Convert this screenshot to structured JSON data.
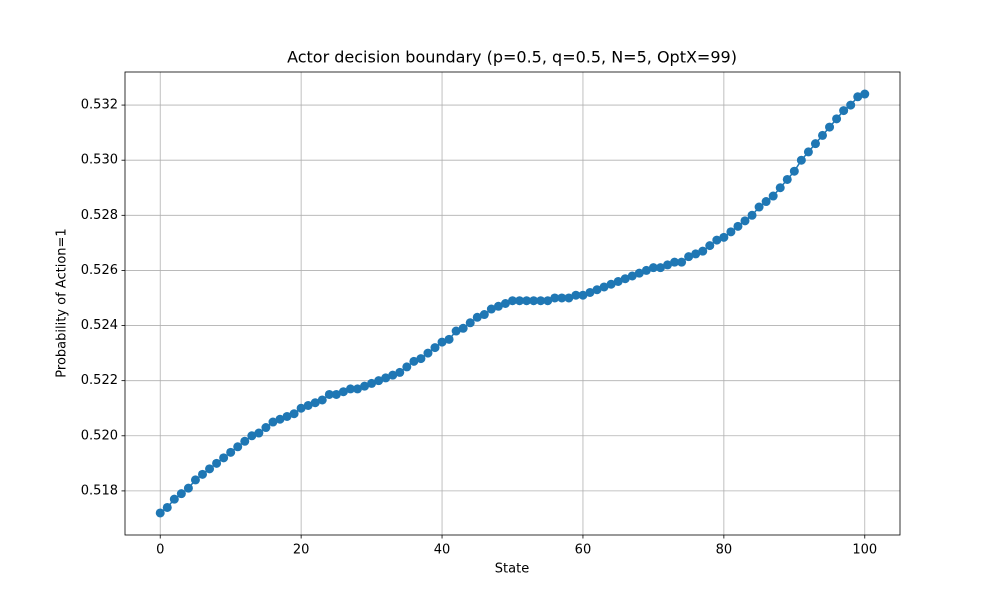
{
  "chart_data": {
    "type": "line",
    "title": "Actor decision boundary (p=0.5, q=0.5, N=5, OptX=99)",
    "x_label": "State",
    "y_label": "Probability of Action=1",
    "x": [
      0,
      1,
      2,
      3,
      4,
      5,
      6,
      7,
      8,
      9,
      10,
      11,
      12,
      13,
      14,
      15,
      16,
      17,
      18,
      19,
      20,
      21,
      22,
      23,
      24,
      25,
      26,
      27,
      28,
      29,
      30,
      31,
      32,
      33,
      34,
      35,
      36,
      37,
      38,
      39,
      40,
      41,
      42,
      43,
      44,
      45,
      46,
      47,
      48,
      49,
      50,
      51,
      52,
      53,
      54,
      55,
      56,
      57,
      58,
      59,
      60,
      61,
      62,
      63,
      64,
      65,
      66,
      67,
      68,
      69,
      70,
      71,
      72,
      73,
      74,
      75,
      76,
      77,
      78,
      79,
      80,
      81,
      82,
      83,
      84,
      85,
      86,
      87,
      88,
      89,
      90,
      91,
      92,
      93,
      94,
      95,
      96,
      97,
      98,
      99,
      100
    ],
    "values": [
      0.5172,
      0.5174,
      0.5177,
      0.5179,
      0.5181,
      0.5184,
      0.5186,
      0.5188,
      0.519,
      0.5192,
      0.5194,
      0.5196,
      0.5198,
      0.52,
      0.5201,
      0.5203,
      0.5205,
      0.5206,
      0.5207,
      0.5208,
      0.521,
      0.5211,
      0.5212,
      0.5213,
      0.5215,
      0.5215,
      0.5216,
      0.5217,
      0.5217,
      0.5218,
      0.5219,
      0.522,
      0.5221,
      0.5222,
      0.5223,
      0.5225,
      0.5227,
      0.5228,
      0.523,
      0.5232,
      0.5234,
      0.5235,
      0.5238,
      0.5239,
      0.5241,
      0.5243,
      0.5244,
      0.5246,
      0.5247,
      0.5248,
      0.5249,
      0.5249,
      0.5249,
      0.5249,
      0.5249,
      0.5249,
      0.525,
      0.525,
      0.525,
      0.5251,
      0.5251,
      0.5252,
      0.5253,
      0.5254,
      0.5255,
      0.5256,
      0.5257,
      0.5258,
      0.5259,
      0.526,
      0.5261,
      0.5261,
      0.5262,
      0.5263,
      0.5263,
      0.5265,
      0.5266,
      0.5267,
      0.5269,
      0.5271,
      0.5272,
      0.5274,
      0.5276,
      0.5278,
      0.528,
      0.5283,
      0.5285,
      0.5287,
      0.529,
      0.5293,
      0.5296,
      0.53,
      0.5303,
      0.5306,
      0.5309,
      0.5312,
      0.5315,
      0.5318,
      0.532,
      0.5323,
      0.5324
    ],
    "color": "#1f77b4",
    "xlim": [
      -5,
      105
    ],
    "xticks": [
      0,
      20,
      40,
      60,
      80,
      100
    ],
    "ylim": [
      0.5164,
      0.5332
    ],
    "yticks": [
      0.518,
      {
        "value": 0.52,
        "label": "0.520"
      },
      0.522,
      0.524,
      0.526,
      0.528,
      {
        "value": 0.53,
        "label": "0.530"
      },
      0.532
    ],
    "grid": true
  }
}
